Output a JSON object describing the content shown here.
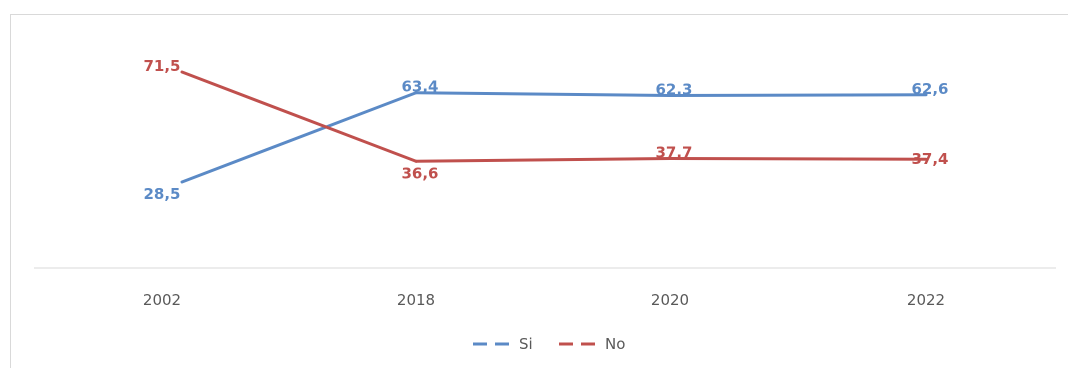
{
  "chart_data": {
    "type": "line",
    "categories": [
      "2002",
      "2018",
      "2020",
      "2022"
    ],
    "series": [
      {
        "name": "Si",
        "values": [
          28.5,
          63.4,
          62.3,
          62.6
        ],
        "labels": [
          "28,5",
          "63,4",
          "62,3",
          "62,6"
        ],
        "color": "#5b8ac6"
      },
      {
        "name": "No",
        "values": [
          71.5,
          36.6,
          37.7,
          37.4
        ],
        "labels": [
          "71,5",
          "36,6",
          "37,7",
          "37,4"
        ],
        "color": "#c0504d"
      }
    ],
    "legend": "bottom",
    "grid": false
  }
}
